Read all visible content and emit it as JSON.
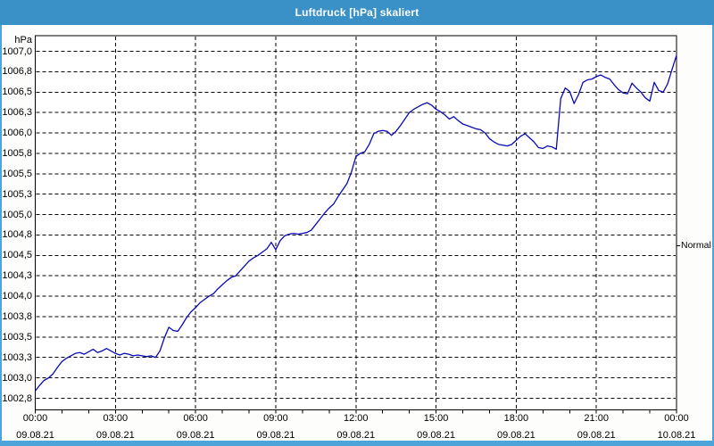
{
  "window": {
    "title": "Luftdruck [hPa] skaliert"
  },
  "colors": {
    "titlebar": "#3a91c8",
    "frame": "#4da4d8",
    "background": "#fdfdfb",
    "plot_background": "#ffffff",
    "gridline": "#000000",
    "axis": "#000000",
    "line": "#0909b6",
    "text": "#000000",
    "title_text": "#ffffff"
  },
  "chart_data": {
    "type": "line",
    "title": "Luftdruck [hPa] skaliert",
    "unit_label": "hPa",
    "grid": "dashed, every 0.25 hPa horizontal, every 3 h vertical",
    "legend_position": "none",
    "xlim_hours": [
      0,
      24
    ],
    "ylim": [
      1002.62,
      1007.19
    ],
    "y_ticks": {
      "max": 1007.0,
      "min": 1002.75,
      "step": 0.25,
      "labels_top_to_bottom": [
        "1007,0",
        "1006,8",
        "1006,5",
        "1006,3",
        "1006,0",
        "1005,8",
        "1005,5",
        "1005,3",
        "1005,0",
        "1004,8",
        "1004,5",
        "1004,3",
        "1004,0",
        "1003,8",
        "1003,5",
        "1003,3",
        "1003,0",
        "1002,8"
      ]
    },
    "x_ticks": [
      {
        "time": "00:00",
        "date": "09.08.21",
        "hour": 0
      },
      {
        "time": "03:00",
        "date": "09.08.21",
        "hour": 3
      },
      {
        "time": "06:00",
        "date": "09.08.21",
        "hour": 6
      },
      {
        "time": "09:00",
        "date": "09.08.21",
        "hour": 9
      },
      {
        "time": "12:00",
        "date": "09.08.21",
        "hour": 12
      },
      {
        "time": "15:00",
        "date": "09.08.21",
        "hour": 15
      },
      {
        "time": "18:00",
        "date": "09.08.21",
        "hour": 18
      },
      {
        "time": "21:00",
        "date": "09.08.21",
        "hour": 21
      },
      {
        "time": "00:00",
        "date": "10.08.21",
        "hour": 24
      }
    ],
    "minor_x_tick_every_hours": 1,
    "right_axis_annotation": {
      "label": "Normal",
      "value": 1004.62
    },
    "series": [
      {
        "name": "Luftdruck",
        "color": "#0909b6",
        "start": "09.08.21 00:00",
        "interval_minutes": 10,
        "values": [
          1002.84,
          1002.91,
          1002.97,
          1003.0,
          1003.05,
          1003.13,
          1003.2,
          1003.24,
          1003.27,
          1003.3,
          1003.31,
          1003.29,
          1003.32,
          1003.35,
          1003.31,
          1003.33,
          1003.36,
          1003.33,
          1003.3,
          1003.28,
          1003.3,
          1003.29,
          1003.27,
          1003.28,
          1003.27,
          1003.26,
          1003.27,
          1003.25,
          1003.33,
          1003.49,
          1003.62,
          1003.58,
          1003.57,
          1003.65,
          1003.74,
          1003.81,
          1003.86,
          1003.92,
          1003.96,
          1004.0,
          1004.03,
          1004.09,
          1004.14,
          1004.19,
          1004.23,
          1004.25,
          1004.31,
          1004.37,
          1004.43,
          1004.47,
          1004.5,
          1004.54,
          1004.58,
          1004.66,
          1004.57,
          1004.68,
          1004.74,
          1004.76,
          1004.77,
          1004.76,
          1004.77,
          1004.78,
          1004.81,
          1004.88,
          1004.95,
          1005.02,
          1005.08,
          1005.13,
          1005.22,
          1005.3,
          1005.38,
          1005.52,
          1005.71,
          1005.75,
          1005.77,
          1005.86,
          1005.99,
          1006.02,
          1006.03,
          1006.02,
          1005.97,
          1006.02,
          1006.09,
          1006.17,
          1006.25,
          1006.29,
          1006.32,
          1006.35,
          1006.37,
          1006.34,
          1006.29,
          1006.26,
          1006.22,
          1006.17,
          1006.2,
          1006.15,
          1006.11,
          1006.09,
          1006.07,
          1006.05,
          1006.04,
          1006.0,
          1005.93,
          1005.89,
          1005.86,
          1005.85,
          1005.84,
          1005.86,
          1005.91,
          1005.96,
          1005.99,
          1005.94,
          1005.89,
          1005.82,
          1005.81,
          1005.84,
          1005.83,
          1005.8,
          1006.42,
          1006.55,
          1006.51,
          1006.36,
          1006.47,
          1006.62,
          1006.65,
          1006.66,
          1006.69,
          1006.71,
          1006.68,
          1006.66,
          1006.59,
          1006.53,
          1006.49,
          1006.48,
          1006.61,
          1006.55,
          1006.5,
          1006.43,
          1006.39,
          1006.62,
          1006.52,
          1006.5,
          1006.6,
          1006.78,
          1006.95
        ]
      }
    ]
  }
}
